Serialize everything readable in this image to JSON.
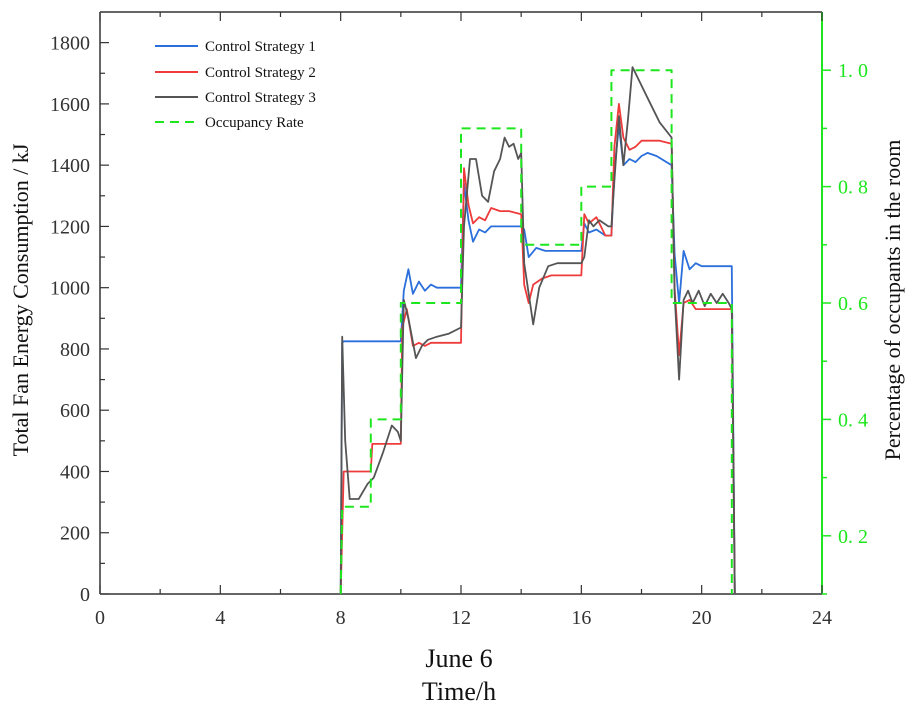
{
  "chart_data": {
    "type": "line",
    "xlabel_line1": "June 6",
    "xlabel_line2": "Time/h",
    "ylabel": "Total Fan Energy Consumption / kJ",
    "y2label": "Percentage of occupants in the room",
    "xlim": [
      0,
      24
    ],
    "ylim": [
      0,
      1900
    ],
    "y2lim": [
      0.1,
      1.1
    ],
    "xticks": [
      0,
      4,
      8,
      12,
      16,
      20,
      24
    ],
    "yticks": [
      0,
      200,
      400,
      600,
      800,
      1000,
      1200,
      1400,
      1600,
      1800
    ],
    "y2ticks": [
      0.2,
      0.4,
      0.6,
      0.8,
      1.0
    ],
    "y2ticklabels": [
      "0. 2",
      "0. 4",
      "0. 6",
      "0. 8",
      "1. 0"
    ],
    "legend_position": "top-left",
    "colors": {
      "strategy1": "#2a6fdb",
      "strategy2": "#ee3b3b",
      "strategy3": "#555555",
      "occupancy": "#1ee61e",
      "axis": "#333333",
      "right_axis": "#1ee61e"
    },
    "series": [
      {
        "name": "Control Strategy 1",
        "axis": "left",
        "style": "solid",
        "x": [
          8.0,
          8.05,
          8.1,
          10.0,
          10.1,
          10.25,
          10.4,
          10.6,
          10.8,
          11.0,
          11.2,
          11.5,
          12.0,
          12.1,
          12.25,
          12.4,
          12.6,
          12.8,
          13.0,
          13.2,
          13.5,
          14.0,
          14.1,
          14.25,
          14.5,
          14.8,
          15.2,
          15.6,
          16.0,
          16.1,
          16.25,
          16.5,
          16.8,
          17.0,
          17.1,
          17.25,
          17.4,
          17.6,
          17.8,
          18.0,
          18.2,
          18.5,
          19.0,
          19.1,
          19.25,
          19.4,
          19.6,
          19.8,
          20.0,
          20.5,
          21.0,
          21.0,
          21.1
        ],
        "y": [
          0,
          820,
          825,
          825,
          990,
          1060,
          980,
          1020,
          990,
          1010,
          1000,
          1000,
          1000,
          1340,
          1220,
          1150,
          1190,
          1180,
          1200,
          1200,
          1200,
          1200,
          1190,
          1100,
          1130,
          1120,
          1120,
          1120,
          1120,
          1210,
          1180,
          1190,
          1170,
          1170,
          1380,
          1530,
          1400,
          1420,
          1410,
          1430,
          1440,
          1430,
          1400,
          1110,
          950,
          1120,
          1060,
          1080,
          1070,
          1070,
          1070,
          1060,
          0
        ]
      },
      {
        "name": "Control Strategy 2",
        "axis": "left",
        "style": "solid",
        "x": [
          8.0,
          8.1,
          8.2,
          9.0,
          9.05,
          10.0,
          10.05,
          10.2,
          10.4,
          10.6,
          10.8,
          11.0,
          11.3,
          12.0,
          12.1,
          12.25,
          12.4,
          12.6,
          12.8,
          13.0,
          13.3,
          13.6,
          14.0,
          14.1,
          14.25,
          14.4,
          14.7,
          15.0,
          15.5,
          16.0,
          16.1,
          16.25,
          16.5,
          16.8,
          17.0,
          17.1,
          17.25,
          17.4,
          17.6,
          17.8,
          18.0,
          18.3,
          18.6,
          19.0,
          19.1,
          19.25,
          19.4,
          19.6,
          19.8,
          20.0,
          20.5,
          21.0,
          21.1
        ],
        "y": [
          0,
          400,
          400,
          400,
          490,
          490,
          870,
          930,
          810,
          820,
          810,
          820,
          820,
          820,
          1390,
          1270,
          1210,
          1230,
          1220,
          1260,
          1250,
          1250,
          1240,
          1010,
          950,
          1010,
          1030,
          1040,
          1040,
          1040,
          1240,
          1210,
          1230,
          1170,
          1170,
          1460,
          1600,
          1490,
          1450,
          1460,
          1480,
          1480,
          1480,
          1470,
          1000,
          780,
          950,
          960,
          930,
          930,
          930,
          930,
          0
        ]
      },
      {
        "name": "Control Strategy 3",
        "axis": "left",
        "style": "solid",
        "x": [
          8.0,
          8.05,
          8.15,
          8.3,
          8.6,
          8.9,
          9.1,
          9.4,
          9.7,
          9.9,
          10.0,
          10.1,
          10.25,
          10.5,
          10.7,
          10.9,
          11.2,
          11.6,
          12.0,
          12.1,
          12.3,
          12.5,
          12.7,
          12.9,
          13.1,
          13.3,
          13.45,
          13.6,
          13.75,
          13.9,
          14.0,
          14.1,
          14.25,
          14.4,
          14.6,
          14.9,
          15.2,
          15.6,
          16.0,
          16.1,
          16.25,
          16.4,
          16.6,
          16.9,
          17.0,
          17.1,
          17.25,
          17.4,
          17.55,
          17.7,
          17.9,
          18.2,
          18.6,
          19.0,
          19.1,
          19.25,
          19.4,
          19.55,
          19.7,
          19.9,
          20.1,
          20.3,
          20.5,
          20.7,
          20.9,
          21.0,
          21.1
        ],
        "y": [
          0,
          840,
          500,
          310,
          310,
          360,
          380,
          460,
          550,
          530,
          500,
          960,
          900,
          770,
          810,
          830,
          840,
          850,
          870,
          1200,
          1420,
          1420,
          1300,
          1280,
          1380,
          1420,
          1490,
          1460,
          1470,
          1420,
          1440,
          1080,
          980,
          880,
          1000,
          1070,
          1080,
          1080,
          1080,
          1100,
          1220,
          1200,
          1220,
          1200,
          1200,
          1350,
          1560,
          1400,
          1550,
          1720,
          1680,
          1620,
          1540,
          1490,
          980,
          700,
          960,
          990,
          950,
          990,
          940,
          980,
          950,
          980,
          950,
          930,
          0
        ]
      },
      {
        "name": "Occupancy Rate",
        "axis": "right",
        "style": "dashed",
        "x": [
          8.0,
          8.05,
          9.0,
          9.0,
          10.0,
          10.0,
          12.0,
          12.0,
          14.0,
          14.0,
          16.0,
          16.0,
          17.0,
          17.0,
          19.0,
          19.0,
          21.0,
          21.0
        ],
        "y": [
          0.1,
          0.25,
          0.25,
          0.4,
          0.4,
          0.6,
          0.6,
          0.9,
          0.9,
          0.7,
          0.7,
          0.8,
          0.8,
          1.0,
          1.0,
          0.6,
          0.6,
          0.1
        ]
      }
    ]
  }
}
